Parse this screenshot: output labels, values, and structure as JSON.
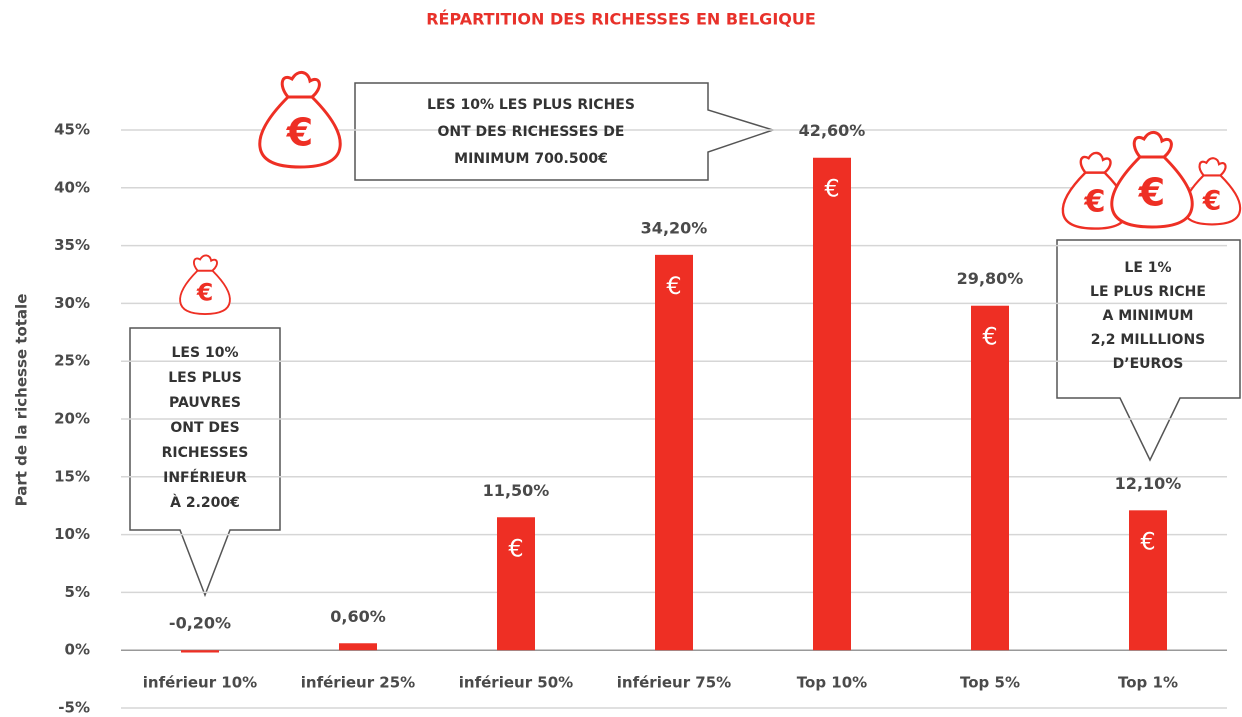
{
  "chart_data": {
    "type": "bar",
    "title": "RÉPARTITION DES RICHESSES  EN BELGIQUE",
    "y_axis_label": "Part de la richesse totale",
    "categories": [
      "inférieur 10%",
      "inférieur 25%",
      "inférieur 50%",
      "inférieur 75%",
      "Top 10%",
      "Top 5%",
      "Top 1%"
    ],
    "values": [
      -0.2,
      0.6,
      11.5,
      34.2,
      42.6,
      29.8,
      12.1
    ],
    "value_labels": [
      "-0,20%",
      "0,60%",
      "11,50%",
      "34,20%",
      "42,60%",
      "29,80%",
      "12,10%"
    ],
    "color": "#ee2f24",
    "bar_symbol": "€",
    "ylim": [
      -5,
      45
    ],
    "yticks": [
      {
        "value": -5,
        "label": "-5%"
      },
      {
        "value": 0,
        "label": "0%"
      },
      {
        "value": 5,
        "label": "5%"
      },
      {
        "value": 10,
        "label": "10%"
      },
      {
        "value": 15,
        "label": "15%"
      },
      {
        "value": 20,
        "label": "20%"
      },
      {
        "value": 25,
        "label": "25%"
      },
      {
        "value": 30,
        "label": "30%"
      },
      {
        "value": 35,
        "label": "35%"
      },
      {
        "value": 40,
        "label": "40%"
      },
      {
        "value": 45,
        "label": "45%"
      }
    ],
    "grid": true,
    "annotations": [
      {
        "lines": [
          "LES 10% LES PLUS RICHES",
          "ONT DES RICHESSES DE",
          "MINIMUM 700.500€"
        ]
      },
      {
        "lines": [
          "LES 10%",
          "LES PLUS",
          "PAUVRES",
          "ONT DES",
          "RICHESSES",
          "INFÉRIEUR",
          "À 2.200€"
        ]
      },
      {
        "lines": [
          "LE 1%",
          "LE PLUS RICHE",
          "A MINIMUM",
          "2,2 MILLLIONS",
          "D’EUROS"
        ]
      }
    ]
  }
}
